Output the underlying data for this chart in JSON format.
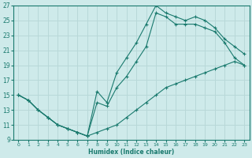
{
  "xlabel": "Humidex (Indice chaleur)",
  "bg_color": "#ceeaea",
  "grid_color": "#b8d8d8",
  "line_color": "#1a7a6e",
  "xlim": [
    -0.5,
    23.5
  ],
  "ylim": [
    9,
    27
  ],
  "xticks": [
    0,
    1,
    2,
    3,
    4,
    5,
    6,
    7,
    8,
    9,
    10,
    11,
    12,
    13,
    14,
    15,
    16,
    17,
    18,
    19,
    20,
    21,
    22,
    23
  ],
  "yticks": [
    9,
    11,
    13,
    15,
    17,
    19,
    21,
    23,
    25,
    27
  ],
  "line1_x": [
    0,
    1,
    2,
    3,
    4,
    5,
    6,
    7,
    8,
    9,
    10,
    11,
    12,
    13,
    14,
    15,
    16,
    17,
    18,
    19,
    20,
    21,
    22,
    23
  ],
  "line1_y": [
    15,
    14.3,
    13,
    12,
    11,
    10.5,
    10,
    9.5,
    10,
    10.5,
    11,
    12,
    13,
    14,
    15,
    16,
    16.5,
    17,
    17.5,
    18,
    18.5,
    19,
    19.5,
    19
  ],
  "line2_x": [
    0,
    1,
    2,
    3,
    4,
    5,
    6,
    7,
    8,
    9,
    10,
    11,
    12,
    13,
    14,
    15,
    16,
    17,
    18,
    19,
    20,
    21,
    22,
    23
  ],
  "line2_y": [
    15,
    14.3,
    13,
    12,
    11,
    10.5,
    10,
    9.5,
    14,
    13.5,
    16,
    17.5,
    19.5,
    21.5,
    26,
    25.5,
    24.5,
    24.5,
    24.5,
    24,
    23.5,
    22,
    20,
    19
  ],
  "line3_x": [
    0,
    1,
    2,
    3,
    4,
    5,
    6,
    7,
    8,
    9,
    10,
    11,
    12,
    13,
    14,
    15,
    16,
    17,
    18,
    19,
    20,
    21,
    22,
    23
  ],
  "line3_y": [
    15,
    14.3,
    13,
    12,
    11,
    10.5,
    10,
    9.5,
    15.5,
    14,
    18,
    20,
    22,
    24.5,
    27,
    26,
    25.5,
    25,
    25.5,
    25,
    24,
    22.5,
    21.5,
    20.5
  ]
}
